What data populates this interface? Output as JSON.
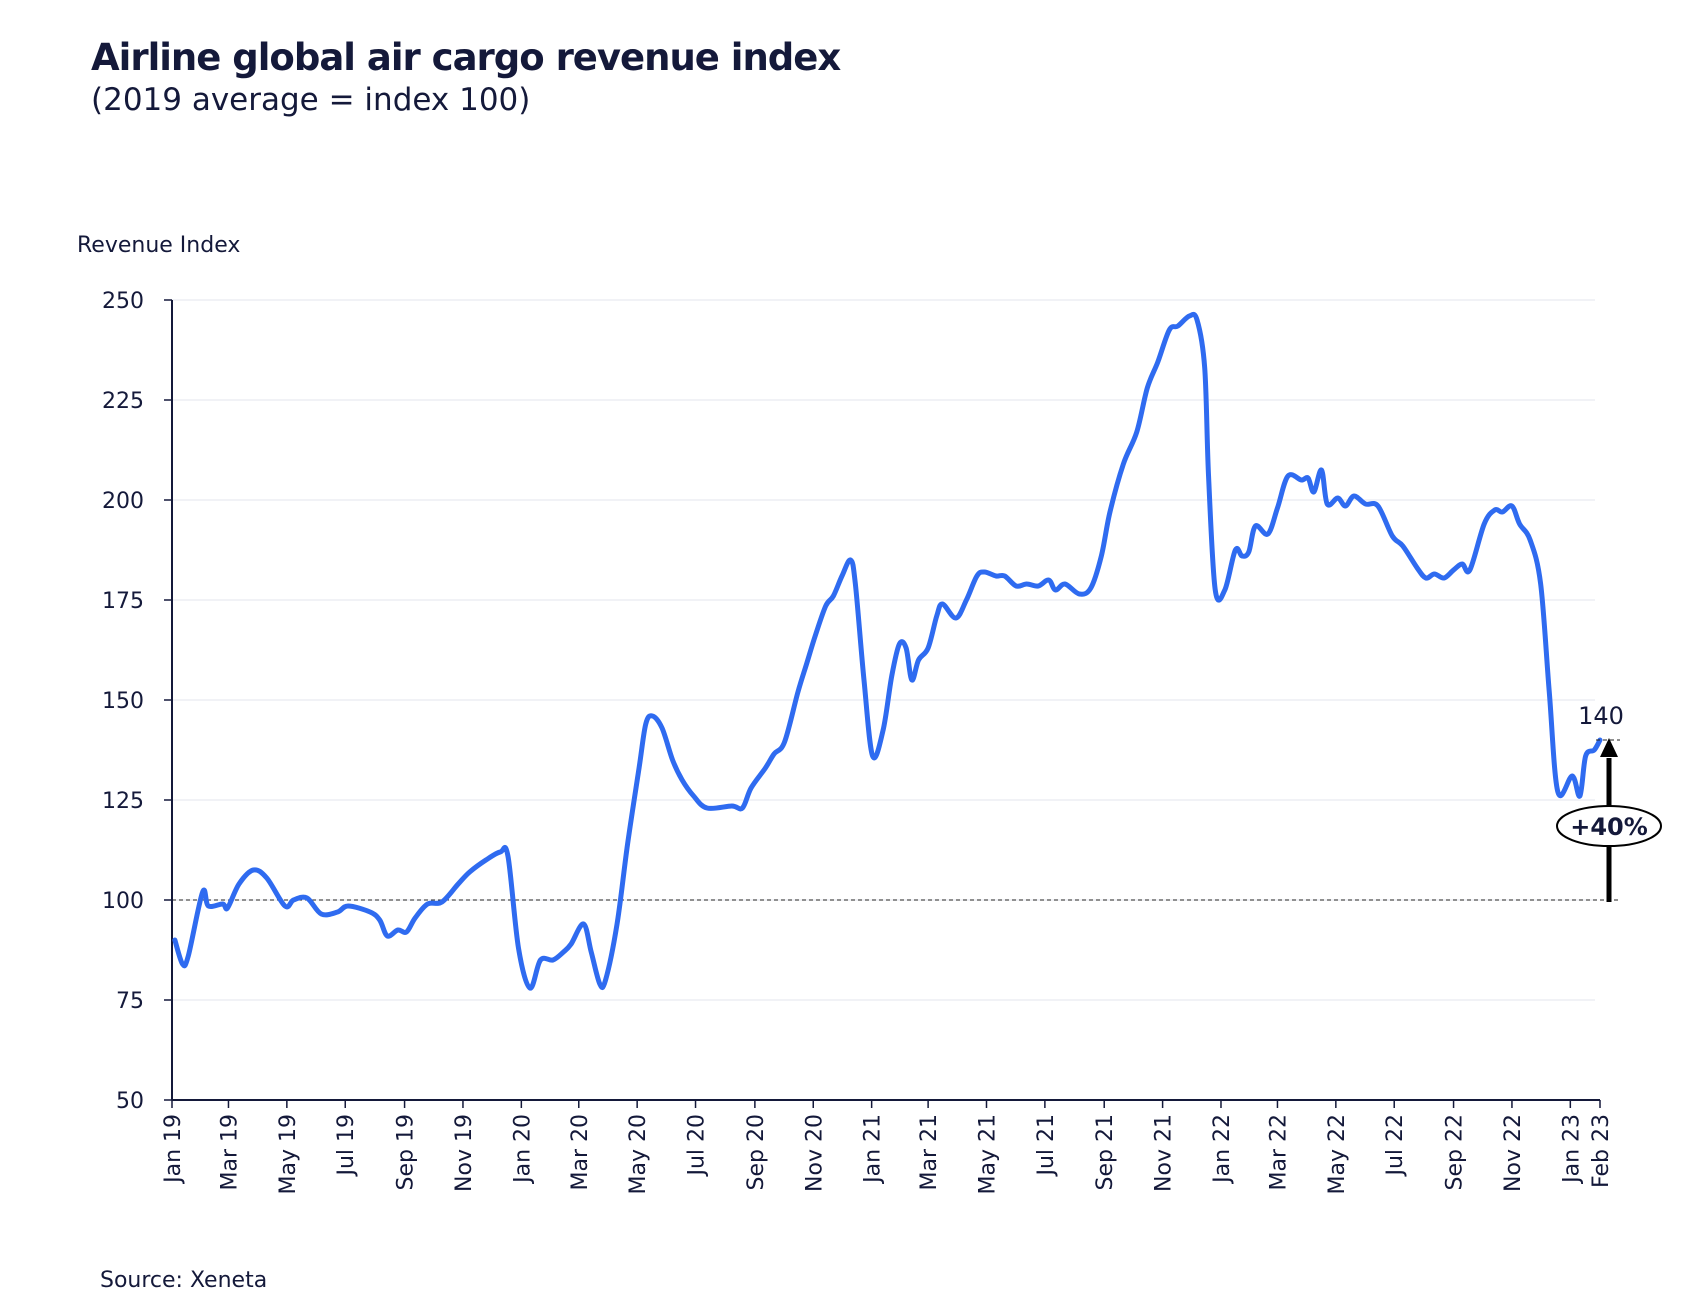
{
  "chart_data": {
    "type": "line",
    "title": "Airline global air cargo revenue index",
    "subtitle": "(2019 average = index 100)",
    "ylabel": "Revenue Index",
    "xlabel": "",
    "ylim": [
      50,
      250
    ],
    "yticks": [
      50,
      75,
      100,
      125,
      150,
      175,
      200,
      225,
      250
    ],
    "xlim": [
      "2019-01-01",
      "2023-02-01"
    ],
    "xticks": [
      {
        "date": "2019-01-01",
        "label": "Jan 19"
      },
      {
        "date": "2019-03-01",
        "label": "Mar 19"
      },
      {
        "date": "2019-05-01",
        "label": "May 19"
      },
      {
        "date": "2019-07-01",
        "label": "Jul 19"
      },
      {
        "date": "2019-09-01",
        "label": "Sep 19"
      },
      {
        "date": "2019-11-01",
        "label": "Nov 19"
      },
      {
        "date": "2020-01-01",
        "label": "Jan 20"
      },
      {
        "date": "2020-03-01",
        "label": "Mar 20"
      },
      {
        "date": "2020-05-01",
        "label": "May 20"
      },
      {
        "date": "2020-07-01",
        "label": "Jul 20"
      },
      {
        "date": "2020-09-01",
        "label": "Sep 20"
      },
      {
        "date": "2020-11-01",
        "label": "Nov 20"
      },
      {
        "date": "2021-01-01",
        "label": "Jan 21"
      },
      {
        "date": "2021-03-01",
        "label": "Mar 21"
      },
      {
        "date": "2021-05-01",
        "label": "May 21"
      },
      {
        "date": "2021-07-01",
        "label": "Jul 21"
      },
      {
        "date": "2021-09-01",
        "label": "Sep 21"
      },
      {
        "date": "2021-11-01",
        "label": "Nov 21"
      },
      {
        "date": "2022-01-01",
        "label": "Jan 22"
      },
      {
        "date": "2022-03-01",
        "label": "Mar 22"
      },
      {
        "date": "2022-05-01",
        "label": "May 22"
      },
      {
        "date": "2022-07-01",
        "label": "Jul 22"
      },
      {
        "date": "2022-09-01",
        "label": "Sep 22"
      },
      {
        "date": "2022-11-01",
        "label": "Nov 22"
      },
      {
        "date": "2023-01-01",
        "label": "Jan 23"
      },
      {
        "date": "2023-02-01",
        "label": "Feb 23"
      }
    ],
    "grid": "horizontal",
    "reference_line": 100,
    "series": [
      {
        "color": "#2f6bf0",
        "points": [
          [
            "2019-01-04",
            90
          ],
          [
            "2019-01-12",
            84
          ],
          [
            "2019-01-18",
            86
          ],
          [
            "2019-02-02",
            102
          ],
          [
            "2019-02-08",
            98.5
          ],
          [
            "2019-02-23",
            99
          ],
          [
            "2019-02-28",
            98
          ],
          [
            "2019-03-12",
            104
          ],
          [
            "2019-03-27",
            107.5
          ],
          [
            "2019-04-10",
            105.5
          ],
          [
            "2019-04-29",
            98.5
          ],
          [
            "2019-05-08",
            100
          ],
          [
            "2019-05-22",
            100.5
          ],
          [
            "2019-06-06",
            96.5
          ],
          [
            "2019-06-23",
            97
          ],
          [
            "2019-07-04",
            98.5
          ],
          [
            "2019-07-27",
            97
          ],
          [
            "2019-08-06",
            95
          ],
          [
            "2019-08-14",
            91
          ],
          [
            "2019-08-25",
            92.5
          ],
          [
            "2019-09-03",
            92
          ],
          [
            "2019-09-12",
            95.5
          ],
          [
            "2019-09-25",
            99
          ],
          [
            "2019-10-10",
            99.5
          ],
          [
            "2019-10-27",
            104
          ],
          [
            "2019-11-08",
            107
          ],
          [
            "2019-11-25",
            110
          ],
          [
            "2019-12-10",
            112
          ],
          [
            "2019-12-18",
            111
          ],
          [
            "2019-12-29",
            88
          ],
          [
            "2020-01-10",
            78
          ],
          [
            "2020-01-21",
            85
          ],
          [
            "2020-02-03",
            85
          ],
          [
            "2020-02-14",
            87
          ],
          [
            "2020-02-22",
            89
          ],
          [
            "2020-03-06",
            94
          ],
          [
            "2020-03-14",
            87
          ],
          [
            "2020-03-23",
            79
          ],
          [
            "2020-03-29",
            80
          ],
          [
            "2020-04-10",
            94
          ],
          [
            "2020-04-21",
            114
          ],
          [
            "2020-05-03",
            133
          ],
          [
            "2020-05-10",
            144
          ],
          [
            "2020-05-17",
            146
          ],
          [
            "2020-05-27",
            143
          ],
          [
            "2020-06-07",
            135
          ],
          [
            "2020-06-17",
            130
          ],
          [
            "2020-06-29",
            126
          ],
          [
            "2020-07-13",
            123
          ],
          [
            "2020-08-08",
            123.5
          ],
          [
            "2020-08-19",
            123
          ],
          [
            "2020-08-28",
            128
          ],
          [
            "2020-09-12",
            133
          ],
          [
            "2020-09-21",
            136.5
          ],
          [
            "2020-10-02",
            139.5
          ],
          [
            "2020-10-16",
            152
          ],
          [
            "2020-10-25",
            159
          ],
          [
            "2020-11-03",
            166
          ],
          [
            "2020-11-14",
            173.5
          ],
          [
            "2020-11-22",
            176
          ],
          [
            "2020-12-01",
            181
          ],
          [
            "2020-12-10",
            185
          ],
          [
            "2020-12-15",
            179
          ],
          [
            "2020-12-24",
            155
          ],
          [
            "2021-01-02",
            136
          ],
          [
            "2021-01-13",
            142.5
          ],
          [
            "2021-01-22",
            156
          ],
          [
            "2021-01-30",
            164
          ],
          [
            "2021-02-06",
            163
          ],
          [
            "2021-02-12",
            155
          ],
          [
            "2021-02-19",
            160
          ],
          [
            "2021-03-01",
            163
          ],
          [
            "2021-03-10",
            171
          ],
          [
            "2021-03-16",
            174
          ],
          [
            "2021-03-30",
            170.5
          ],
          [
            "2021-04-10",
            175
          ],
          [
            "2021-04-21",
            181
          ],
          [
            "2021-04-29",
            182
          ],
          [
            "2021-05-11",
            181
          ],
          [
            "2021-05-20",
            181
          ],
          [
            "2021-06-01",
            178.5
          ],
          [
            "2021-06-12",
            179
          ],
          [
            "2021-06-24",
            178.5
          ],
          [
            "2021-07-05",
            180
          ],
          [
            "2021-07-12",
            177.5
          ],
          [
            "2021-07-22",
            179
          ],
          [
            "2021-08-06",
            176.5
          ],
          [
            "2021-08-18",
            178
          ],
          [
            "2021-08-29",
            186
          ],
          [
            "2021-09-07",
            197
          ],
          [
            "2021-09-21",
            209
          ],
          [
            "2021-10-05",
            217
          ],
          [
            "2021-10-16",
            228
          ],
          [
            "2021-10-27",
            234.5
          ],
          [
            "2021-11-08",
            242.5
          ],
          [
            "2021-11-17",
            243.5
          ],
          [
            "2021-11-29",
            246
          ],
          [
            "2021-12-07",
            245
          ],
          [
            "2021-12-15",
            233
          ],
          [
            "2021-12-19",
            206
          ],
          [
            "2021-12-26",
            177.5
          ],
          [
            "2022-01-05",
            177.5
          ],
          [
            "2022-01-16",
            187.5
          ],
          [
            "2022-01-23",
            186
          ],
          [
            "2022-01-30",
            187
          ],
          [
            "2022-02-06",
            193.5
          ],
          [
            "2022-02-19",
            191.5
          ],
          [
            "2022-03-01",
            198
          ],
          [
            "2022-03-12",
            206
          ],
          [
            "2022-03-26",
            205
          ],
          [
            "2022-04-02",
            205.5
          ],
          [
            "2022-04-08",
            202
          ],
          [
            "2022-04-16",
            207.5
          ],
          [
            "2022-04-22",
            199
          ],
          [
            "2022-05-03",
            200.5
          ],
          [
            "2022-05-11",
            198.5
          ],
          [
            "2022-05-20",
            201
          ],
          [
            "2022-06-01",
            199
          ],
          [
            "2022-06-14",
            198.5
          ],
          [
            "2022-06-29",
            191
          ],
          [
            "2022-07-10",
            188.5
          ],
          [
            "2022-07-25",
            183
          ],
          [
            "2022-08-03",
            180.5
          ],
          [
            "2022-08-12",
            181.5
          ],
          [
            "2022-08-22",
            180.5
          ],
          [
            "2022-09-01",
            182.5
          ],
          [
            "2022-09-10",
            184
          ],
          [
            "2022-09-18",
            182.5
          ],
          [
            "2022-10-03",
            194
          ],
          [
            "2022-10-14",
            197.5
          ],
          [
            "2022-10-22",
            197
          ],
          [
            "2022-11-01",
            198.5
          ],
          [
            "2022-11-09",
            194
          ],
          [
            "2022-11-20",
            190
          ],
          [
            "2022-12-01",
            179
          ],
          [
            "2022-12-10",
            152
          ],
          [
            "2022-12-19",
            127
          ],
          [
            "2023-01-03",
            131
          ],
          [
            "2023-01-11",
            126
          ],
          [
            "2023-01-17",
            136
          ],
          [
            "2023-01-26",
            137.5
          ],
          [
            "2023-02-01",
            140
          ]
        ]
      }
    ],
    "annotations": {
      "end_value_label": "140",
      "change_label": "+40%"
    },
    "source": "Source: Xeneta"
  }
}
